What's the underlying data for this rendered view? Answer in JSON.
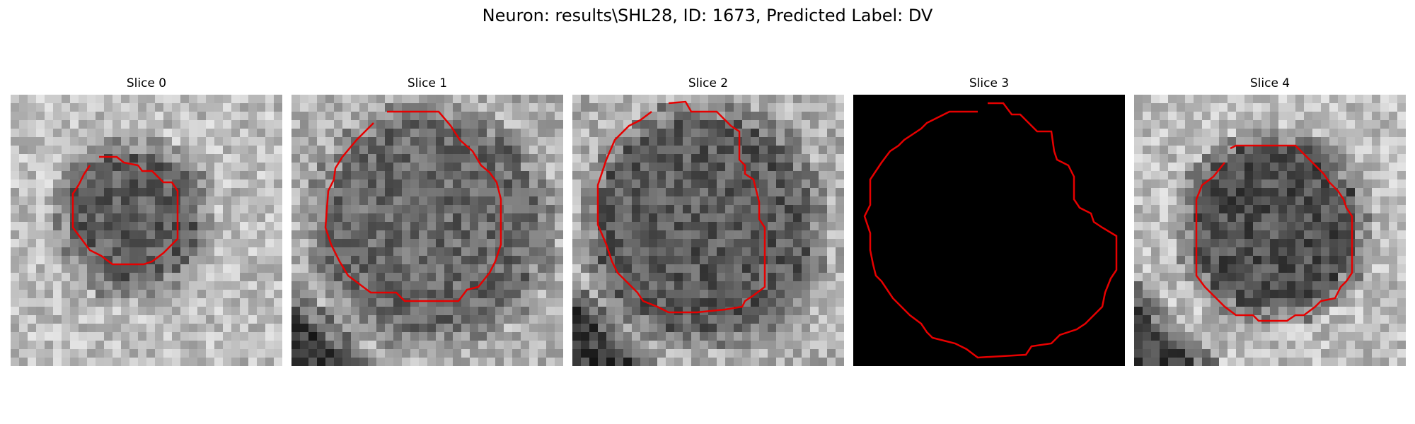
{
  "figure": {
    "suptitle": "Neuron: results\\SHL28, ID: 1673, Predicted Label: DV"
  },
  "panels": [
    {
      "title": "Slice 0",
      "image": "grayscale-microscopy-slice",
      "outline_color": "#e60000"
    },
    {
      "title": "Slice 1",
      "image": "grayscale-microscopy-slice",
      "outline_color": "#e60000"
    },
    {
      "title": "Slice 2",
      "image": "grayscale-microscopy-slice",
      "outline_color": "#e60000"
    },
    {
      "title": "Slice 3",
      "image": "black-empty-slice",
      "outline_color": "#e60000"
    },
    {
      "title": "Slice 4",
      "image": "grayscale-microscopy-slice",
      "outline_color": "#e60000"
    }
  ]
}
